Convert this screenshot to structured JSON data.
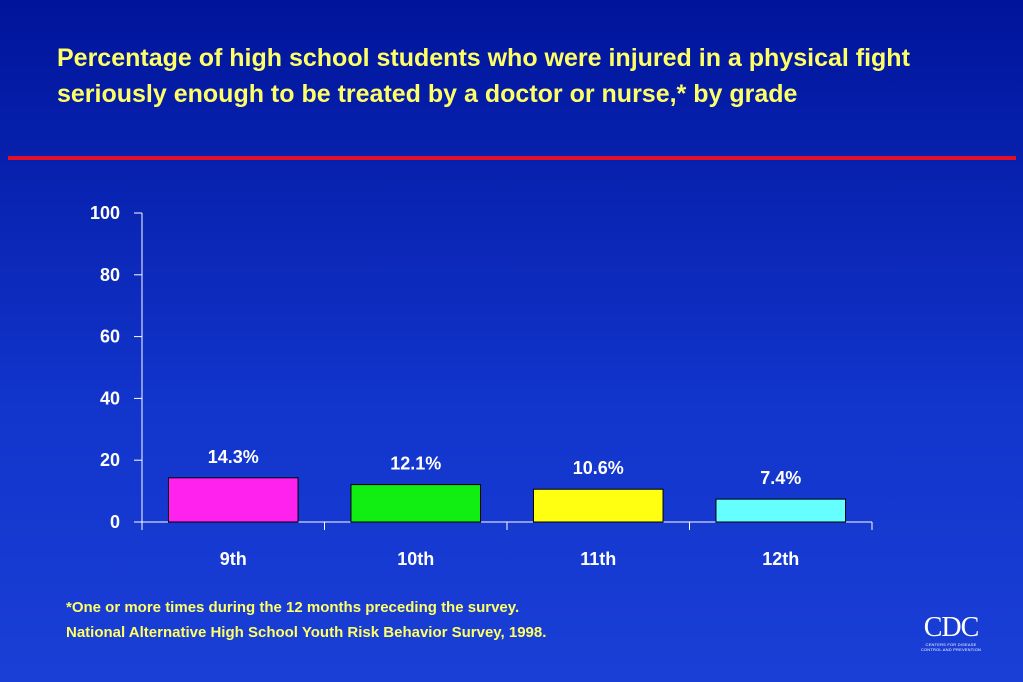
{
  "slide": {
    "title": "Percentage of high school students who were injured in a physical fight seriously enough to be treated by a doctor or nurse,* by grade",
    "footnote_1": "*One or more times during the 12 months preceding the survey.",
    "footnote_2": "National Alternative High School Youth Risk Behavior Survey, 1998.",
    "logo_text": "CDC",
    "logo_subtext": "CENTERS FOR DISEASE CONTROL AND PREVENTION"
  },
  "colors": {
    "title": "#ffff66",
    "rule": "#e0102a",
    "axis": "#ffffff",
    "bars": [
      "#ff22ee",
      "#11ee11",
      "#ffff11",
      "#66ffff"
    ]
  },
  "chart_data": {
    "type": "bar",
    "categories": [
      "9th",
      "10th",
      "11th",
      "12th"
    ],
    "values": [
      14.3,
      12.1,
      10.6,
      7.4
    ],
    "data_labels": [
      "14.3%",
      "12.1%",
      "10.6%",
      "7.4%"
    ],
    "ylim": [
      0,
      100
    ],
    "yticks": [
      0,
      20,
      40,
      60,
      80,
      100
    ],
    "ytick_labels": [
      "0",
      "20",
      "40",
      "60",
      "80",
      "100"
    ],
    "xlabel": "",
    "ylabel": "",
    "grid": false,
    "legend": "none"
  }
}
